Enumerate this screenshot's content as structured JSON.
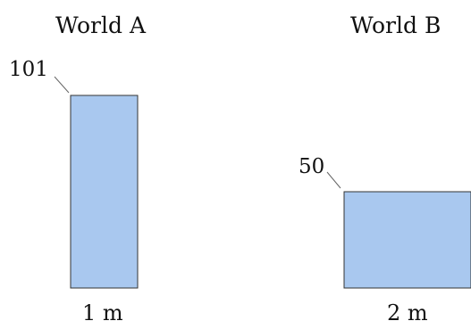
{
  "worlds": [
    {
      "title": "World A",
      "height_value": "101",
      "width_label": "1 m"
    },
    {
      "title": "World B",
      "height_value": "50",
      "width_label": "2 m"
    }
  ],
  "colors": {
    "fill": "#a9c8ef",
    "stroke": "#333333",
    "text": "#111111",
    "leader": "#666666"
  }
}
